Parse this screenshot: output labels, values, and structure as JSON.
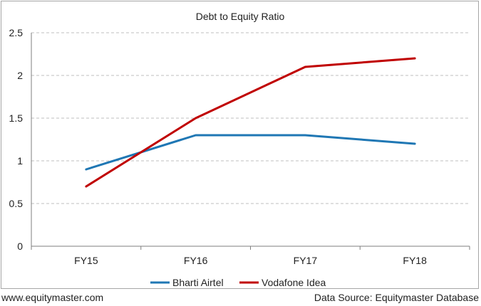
{
  "chart_data": {
    "type": "line",
    "title": "Debt to Equity Ratio",
    "categories": [
      "FY15",
      "FY16",
      "FY17",
      "FY18"
    ],
    "series": [
      {
        "name": "Bharti Airtel",
        "values": [
          0.9,
          1.3,
          1.3,
          1.2
        ],
        "color": "#1f77b4"
      },
      {
        "name": "Vodafone Idea",
        "values": [
          0.7,
          1.5,
          2.1,
          2.2
        ],
        "color": "#c00000"
      }
    ],
    "ylim": [
      0,
      2.5
    ],
    "yticks": [
      "0",
      "0.5",
      "1",
      "1.5",
      "2",
      "2.5"
    ],
    "grid": true,
    "legend": "bottom"
  },
  "footer": {
    "website": "www.equitymaster.com",
    "source": "Data Source: Equitymaster Database"
  }
}
